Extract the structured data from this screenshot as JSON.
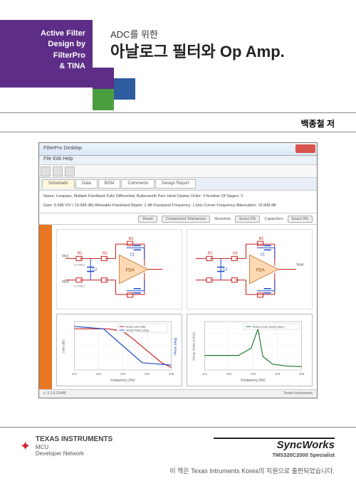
{
  "header": {
    "band_line1": "Active Filter",
    "band_line2": "Design by",
    "band_line3": "FilterPro",
    "band_line4": "& TINA",
    "subtitle": "ADC를 위한",
    "title": "아날로그 필터와 Op Amp.",
    "author": "백종철 저"
  },
  "colors": {
    "purple": "#5d2d87",
    "green": "#4a9e3f",
    "blue": "#2e5c9e",
    "orange": "#e87722",
    "ti_red": "#d92231"
  },
  "app": {
    "window_title": "FilterPro Desktop",
    "menu": "File  Edit  Help",
    "tabs": [
      "Schematic",
      "Data",
      "BOM",
      "Comments",
      "Design Report"
    ],
    "active_tab": 0,
    "params_line1": "Name: Lowpass, Multiple Feedback Fully Differential, Butterworth     Part: Ideal Opamp  Order: 4     Number Of Stages: 2",
    "params_line2": "Gain: 9.998 V/V ( 19.998 dB)     Allowable Passband Ripple: 1 dB  Passband Frequency: 1 kHz     Corner Frequency Attenuation: 16.998 dB",
    "controls": [
      "Reset",
      "Component Tolerances",
      "Resistors",
      "Exact 0%",
      "Capacitors",
      "Exact 0%"
    ],
    "circuit_labels": {
      "r1": "R1",
      "r2": "R2",
      "r3": "R3",
      "c1": "C1",
      "c2": "C2",
      "vin1": "Vin1",
      "vin2": "Vin2",
      "vout": "Vout",
      "fda": "FDA",
      "val_r": "5.048kΩ",
      "val_c": "11.94nF"
    },
    "chart1": {
      "xlabel": "Frequency (Hz)",
      "ylabel_left": "Gain (dB)",
      "ylabel_right": "Phase (deg)",
      "legend": [
        "Actual Gain (dB)",
        "Actual Phase (deg)"
      ],
      "xticks": [
        "1e1",
        "1e2",
        "1e3",
        "1e4",
        "1e5"
      ],
      "gain_color": "#c41e1e",
      "phase_color": "#1e4bc4",
      "gain_points": [
        [
          0,
          0.15
        ],
        [
          0.35,
          0.15
        ],
        [
          0.5,
          0.2
        ],
        [
          0.6,
          0.35
        ],
        [
          0.75,
          0.6
        ],
        [
          0.9,
          0.85
        ],
        [
          1,
          0.95
        ]
      ],
      "phase_points": [
        [
          0,
          0.1
        ],
        [
          0.3,
          0.15
        ],
        [
          0.5,
          0.5
        ],
        [
          0.7,
          0.85
        ],
        [
          1,
          0.9
        ]
      ]
    },
    "chart2": {
      "xlabel": "Frequency (Hz)",
      "ylabel": "Group Delay (uSec)",
      "legend": [
        "Actual Group Delay (uSec)"
      ],
      "xticks": [
        "1e1",
        "1e2",
        "1e3",
        "1e4",
        "1e5"
      ],
      "line_color": "#1e7a2e",
      "points": [
        [
          0,
          0.7
        ],
        [
          0.35,
          0.7
        ],
        [
          0.48,
          0.55
        ],
        [
          0.55,
          0.15
        ],
        [
          0.6,
          0.72
        ],
        [
          0.7,
          0.88
        ],
        [
          0.85,
          0.92
        ],
        [
          1,
          0.93
        ]
      ]
    },
    "footer_left": "v: 3.1.0.23446",
    "footer_right": "Texas Instruments"
  },
  "footer": {
    "ti_name": "TEXAS INSTRUMENTS",
    "ti_sub1": "MCU",
    "ti_sub2": "Developer Network",
    "syncworks": "SyncWorks",
    "sw_sub": "TMS320C2000 Specialist",
    "publish_note": "이 책은 Texas Intruments Korea의 지원으로 출판되었습니다."
  }
}
